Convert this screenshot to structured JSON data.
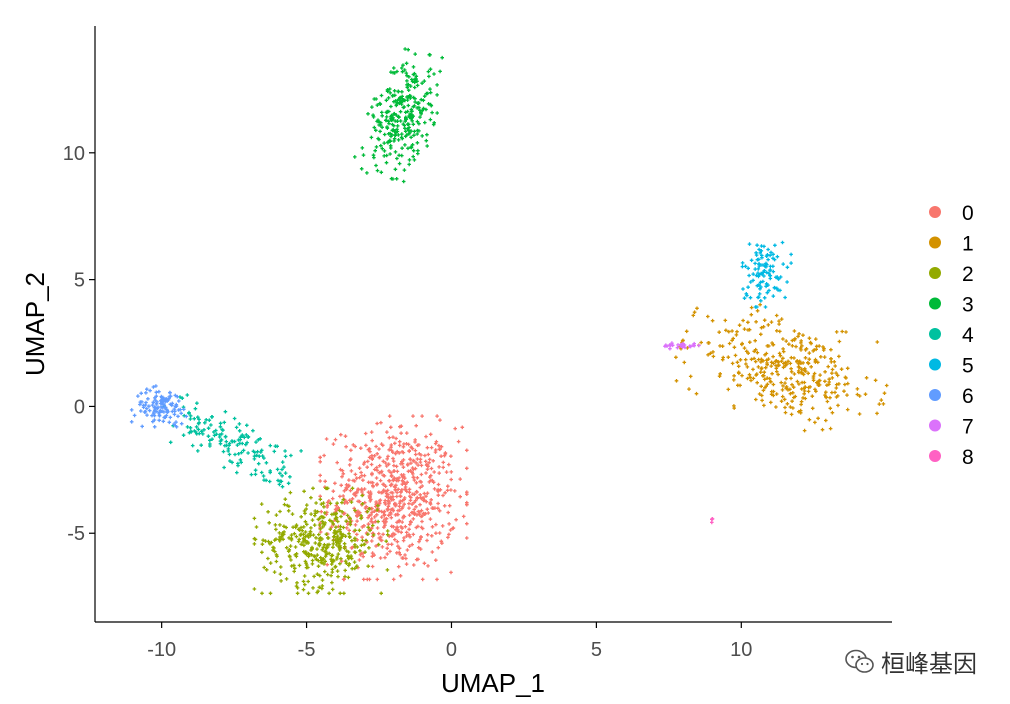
{
  "chart_data": {
    "type": "scatter",
    "title": "",
    "xlabel": "UMAP_1",
    "ylabel": "UMAP_2",
    "xlim": [
      -12.3,
      15.2
    ],
    "ylim": [
      -8.5,
      15.0
    ],
    "xticks": [
      -10,
      -5,
      0,
      5,
      10
    ],
    "yticks": [
      -5,
      0,
      5,
      10
    ],
    "grid": false,
    "legend_position": "right",
    "legend": [
      {
        "name": "0",
        "color": "#F8766D"
      },
      {
        "name": "1",
        "color": "#D39200"
      },
      {
        "name": "2",
        "color": "#93AA00"
      },
      {
        "name": "3",
        "color": "#00BA38"
      },
      {
        "name": "4",
        "color": "#00C19F"
      },
      {
        "name": "5",
        "color": "#00B9E3"
      },
      {
        "name": "6",
        "color": "#619CFF"
      },
      {
        "name": "7",
        "color": "#DB72FB"
      },
      {
        "name": "8",
        "color": "#FF61C3"
      }
    ],
    "clusters": [
      {
        "cluster": "0",
        "approx_points": 700,
        "center": [
          -2.0,
          -3.6
        ],
        "spread": [
          1.1,
          1.4
        ],
        "angle": 0
      },
      {
        "cluster": "1",
        "approx_points": 380,
        "center": [
          11.5,
          1.5
        ],
        "spread": [
          1.6,
          0.9
        ],
        "angle": -20
      },
      {
        "cluster": "2",
        "approx_points": 400,
        "center": [
          -4.5,
          -5.3
        ],
        "spread": [
          1.0,
          0.9
        ],
        "angle": 0
      },
      {
        "cluster": "3",
        "approx_points": 300,
        "center": [
          -1.7,
          11.5
        ],
        "spread": [
          0.5,
          1.1
        ],
        "angle": -15
      },
      {
        "cluster": "4",
        "approx_points": 160,
        "from": [
          -9.3,
          -0.4
        ],
        "to": [
          -5.7,
          -2.5
        ],
        "width": 0.5
      },
      {
        "cluster": "5",
        "approx_points": 110,
        "center": [
          10.8,
          5.3
        ],
        "spread": [
          0.4,
          0.6
        ],
        "angle": 0
      },
      {
        "cluster": "6",
        "approx_points": 120,
        "center": [
          -10.0,
          0.0
        ],
        "spread": [
          0.45,
          0.35
        ],
        "angle": 0
      },
      {
        "cluster": "7",
        "approx_points": 25,
        "center": [
          7.9,
          2.4
        ],
        "spread": [
          0.3,
          0.06
        ],
        "angle": 0
      },
      {
        "cluster": "8",
        "approx_points": 3,
        "center": [
          9.0,
          -4.5
        ],
        "spread": [
          0.05,
          0.05
        ],
        "angle": 0
      }
    ]
  },
  "watermark": {
    "text": "桓峰基因",
    "icon": "wechat-icon"
  }
}
